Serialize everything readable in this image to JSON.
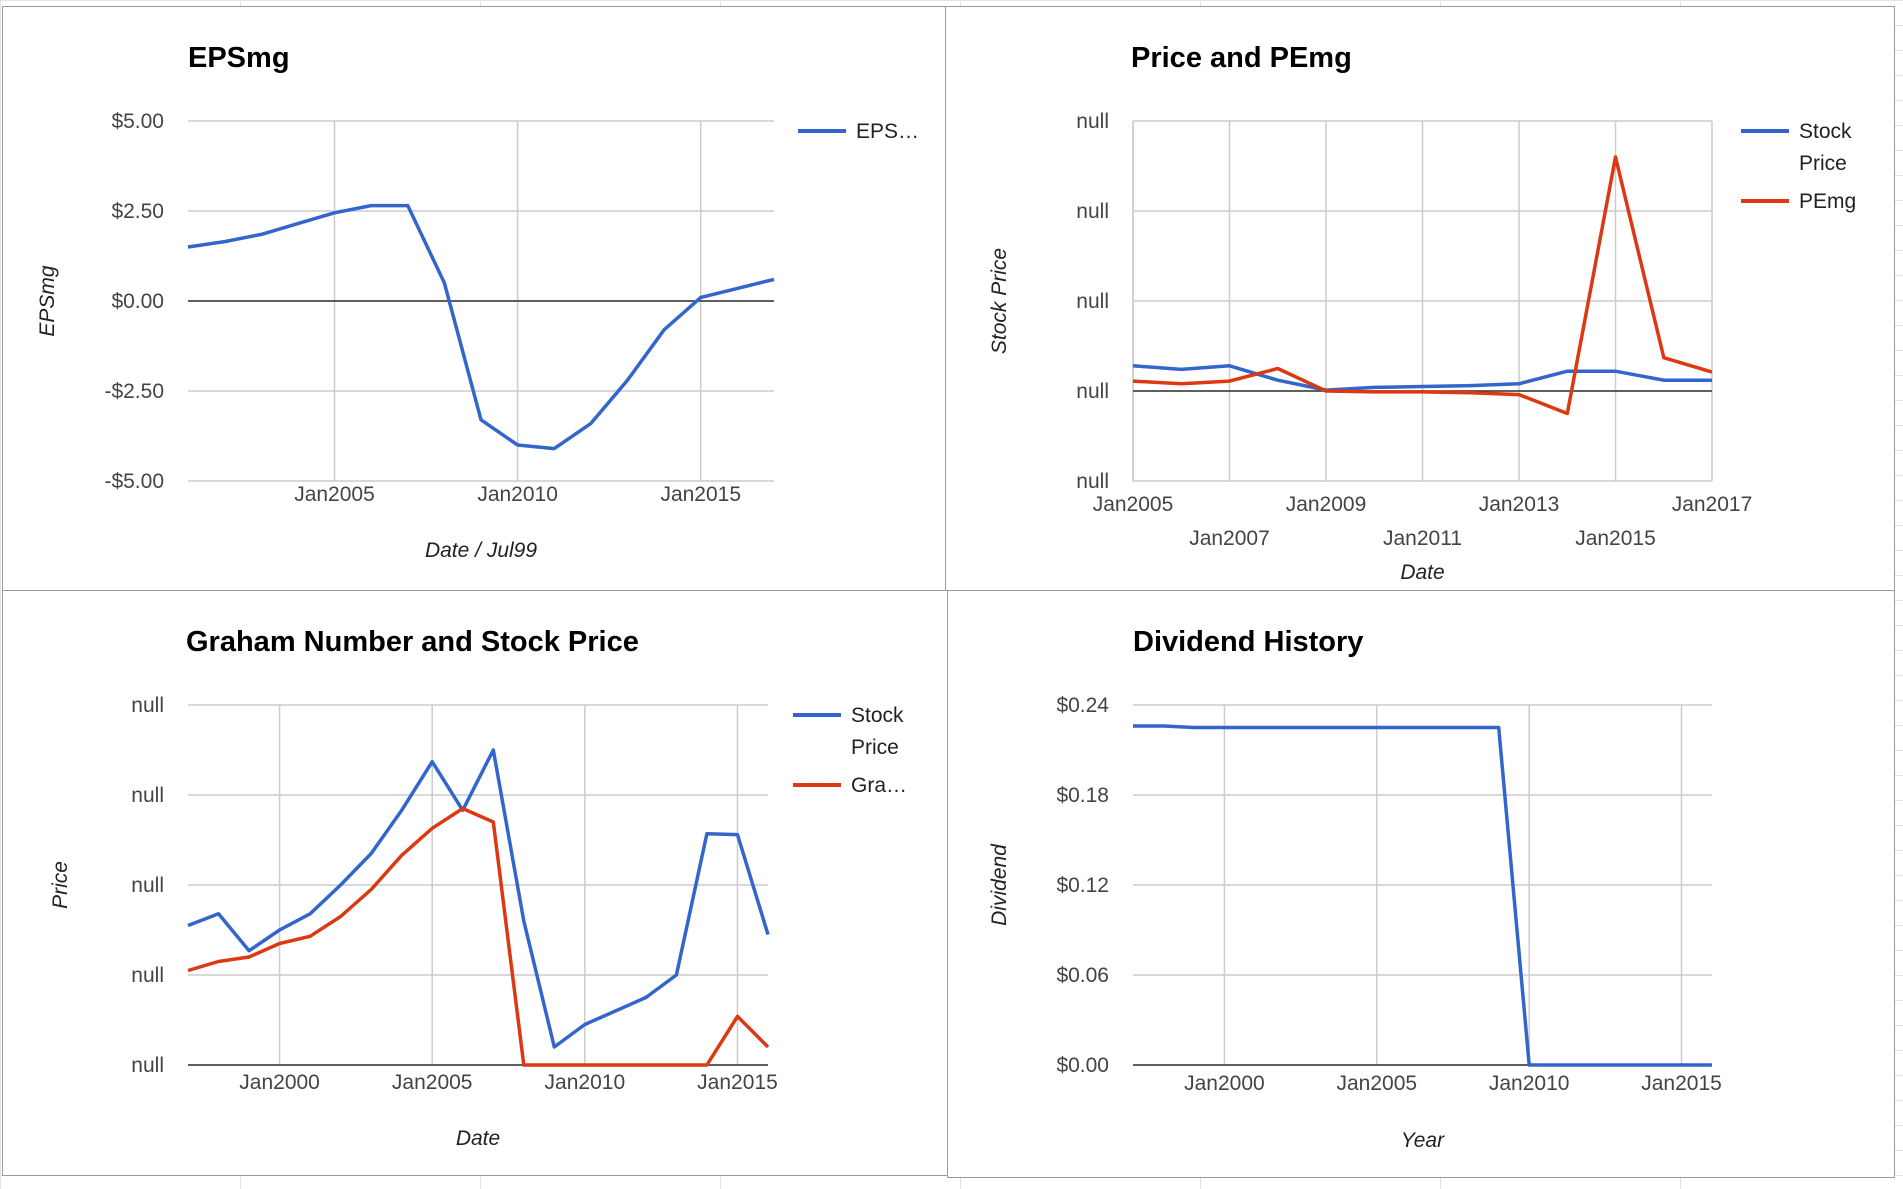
{
  "chart_data": [
    {
      "type": "line",
      "title": "EPSmg",
      "xlabel": "Date / Jul99",
      "ylabel": "EPSmg",
      "x_ticks": [
        "Jan2005",
        "Jan2010",
        "Jan2015"
      ],
      "y_ticks": [
        "$5.00",
        "$2.50",
        "$0.00",
        "-$2.50",
        "-$5.00"
      ],
      "ylim": [
        -5,
        5
      ],
      "xlim": [
        "2001-01",
        "2017-01"
      ],
      "legend": "right",
      "grid": true,
      "series": [
        {
          "name": "EPS…",
          "color": "#3366cc",
          "points": [
            {
              "x": "2001-01",
              "y": 1.5
            },
            {
              "x": "2002-01",
              "y": 1.65
            },
            {
              "x": "2003-01",
              "y": 1.85
            },
            {
              "x": "2004-01",
              "y": 2.15
            },
            {
              "x": "2005-01",
              "y": 2.45
            },
            {
              "x": "2006-01",
              "y": 2.65
            },
            {
              "x": "2007-01",
              "y": 2.65
            },
            {
              "x": "2008-01",
              "y": 0.5
            },
            {
              "x": "2009-01",
              "y": -3.3
            },
            {
              "x": "2010-01",
              "y": -4.0
            },
            {
              "x": "2011-01",
              "y": -4.1
            },
            {
              "x": "2012-01",
              "y": -3.4
            },
            {
              "x": "2013-01",
              "y": -2.2
            },
            {
              "x": "2014-01",
              "y": -0.8
            },
            {
              "x": "2015-01",
              "y": 0.1
            },
            {
              "x": "2016-01",
              "y": 0.35
            },
            {
              "x": "2017-01",
              "y": 0.6
            }
          ]
        }
      ]
    },
    {
      "type": "line",
      "title": "Price and PEmg",
      "xlabel": "Date",
      "ylabel": "Stock Price",
      "x_ticks": [
        "Jan2005",
        "Jan2007",
        "Jan2009",
        "Jan2011",
        "Jan2013",
        "Jan2015",
        "Jan2017"
      ],
      "y_ticks": [
        "null",
        "null",
        "null",
        "null",
        "null"
      ],
      "xlim": [
        "2005-01",
        "2017-01"
      ],
      "legend": "right",
      "grid": true,
      "series": [
        {
          "name": "Stock Price",
          "color": "#3366cc",
          "points": [
            {
              "x": "2005-01",
              "y": 0.28
            },
            {
              "x": "2006-01",
              "y": 0.24
            },
            {
              "x": "2007-01",
              "y": 0.28
            },
            {
              "x": "2008-01",
              "y": 0.12
            },
            {
              "x": "2009-01",
              "y": 0.01
            },
            {
              "x": "2010-01",
              "y": 0.04
            },
            {
              "x": "2011-01",
              "y": 0.05
            },
            {
              "x": "2012-01",
              "y": 0.06
            },
            {
              "x": "2013-01",
              "y": 0.08
            },
            {
              "x": "2014-01",
              "y": 0.22
            },
            {
              "x": "2015-01",
              "y": 0.22
            },
            {
              "x": "2016-01",
              "y": 0.12
            },
            {
              "x": "2017-01",
              "y": 0.12
            }
          ]
        },
        {
          "name": "PEmg",
          "color": "#dc3912",
          "points": [
            {
              "x": "2005-01",
              "y": 0.11
            },
            {
              "x": "2006-01",
              "y": 0.08
            },
            {
              "x": "2007-01",
              "y": 0.11
            },
            {
              "x": "2008-01",
              "y": 0.25
            },
            {
              "x": "2009-01",
              "y": 0.0
            },
            {
              "x": "2010-01",
              "y": -0.01
            },
            {
              "x": "2011-01",
              "y": -0.01
            },
            {
              "x": "2012-01",
              "y": -0.02
            },
            {
              "x": "2013-01",
              "y": -0.04
            },
            {
              "x": "2014-01",
              "y": -0.25
            },
            {
              "x": "2015-01",
              "y": 2.6
            },
            {
              "x": "2016-01",
              "y": 0.37
            },
            {
              "x": "2017-01",
              "y": 0.21
            }
          ]
        }
      ]
    },
    {
      "type": "line",
      "title": "Graham Number and Stock Price",
      "xlabel": "Date",
      "ylabel": "Price",
      "x_ticks": [
        "Jan2000",
        "Jan2005",
        "Jan2010",
        "Jan2015"
      ],
      "y_ticks": [
        "null",
        "null",
        "null",
        "null",
        "null"
      ],
      "xlim": [
        "1997-01",
        "2016-01"
      ],
      "legend": "right",
      "grid": true,
      "series": [
        {
          "name": "Stock Price",
          "color": "#3366cc",
          "points": [
            {
              "x": "1997-01",
              "y": 1.55
            },
            {
              "x": "1998-01",
              "y": 1.68
            },
            {
              "x": "1999-01",
              "y": 1.27
            },
            {
              "x": "2000-01",
              "y": 1.5
            },
            {
              "x": "2001-01",
              "y": 1.68
            },
            {
              "x": "2002-01",
              "y": 2.0
            },
            {
              "x": "2003-01",
              "y": 2.35
            },
            {
              "x": "2004-01",
              "y": 2.83
            },
            {
              "x": "2005-01",
              "y": 3.37
            },
            {
              "x": "2006-01",
              "y": 2.83
            },
            {
              "x": "2007-01",
              "y": 3.5
            },
            {
              "x": "2008-01",
              "y": 1.6
            },
            {
              "x": "2009-01",
              "y": 0.2
            },
            {
              "x": "2010-01",
              "y": 0.45
            },
            {
              "x": "2011-01",
              "y": 0.6
            },
            {
              "x": "2012-01",
              "y": 0.75
            },
            {
              "x": "2013-01",
              "y": 1.0
            },
            {
              "x": "2014-01",
              "y": 2.57
            },
            {
              "x": "2015-01",
              "y": 2.56
            },
            {
              "x": "2016-01",
              "y": 1.45
            }
          ]
        },
        {
          "name": "Gra…",
          "color": "#dc3912",
          "points": [
            {
              "x": "1997-01",
              "y": 1.05
            },
            {
              "x": "1998-01",
              "y": 1.15
            },
            {
              "x": "1999-01",
              "y": 1.2
            },
            {
              "x": "2000-01",
              "y": 1.35
            },
            {
              "x": "2001-01",
              "y": 1.43
            },
            {
              "x": "2002-01",
              "y": 1.65
            },
            {
              "x": "2003-01",
              "y": 1.95
            },
            {
              "x": "2004-01",
              "y": 2.33
            },
            {
              "x": "2005-01",
              "y": 2.63
            },
            {
              "x": "2006-01",
              "y": 2.85
            },
            {
              "x": "2007-01",
              "y": 2.7
            },
            {
              "x": "2008-01",
              "y": 0.0
            },
            {
              "x": "2009-01",
              "y": 0.0
            },
            {
              "x": "2010-01",
              "y": 0.0
            },
            {
              "x": "2011-01",
              "y": 0.0
            },
            {
              "x": "2012-01",
              "y": 0.0
            },
            {
              "x": "2013-01",
              "y": 0.0
            },
            {
              "x": "2014-01",
              "y": 0.0
            },
            {
              "x": "2015-01",
              "y": 0.54
            },
            {
              "x": "2016-01",
              "y": 0.2
            }
          ]
        }
      ]
    },
    {
      "type": "line",
      "title": "Dividend History",
      "xlabel": "Year",
      "ylabel": "Dividend",
      "x_ticks": [
        "Jan2000",
        "Jan2005",
        "Jan2010",
        "Jan2015"
      ],
      "y_ticks": [
        "$0.24",
        "$0.18",
        "$0.12",
        "$0.06",
        "$0.00"
      ],
      "ylim": [
        0,
        0.24
      ],
      "xlim": [
        "1997-01",
        "2016-01"
      ],
      "legend": "none",
      "grid": true,
      "series": [
        {
          "name": "",
          "color": "#3366cc",
          "points": [
            {
              "x": "1997-01",
              "y": 0.226
            },
            {
              "x": "1998-01",
              "y": 0.226
            },
            {
              "x": "1999-01",
              "y": 0.225
            },
            {
              "x": "2000-01",
              "y": 0.225
            },
            {
              "x": "2001-01",
              "y": 0.225
            },
            {
              "x": "2002-01",
              "y": 0.225
            },
            {
              "x": "2003-01",
              "y": 0.225
            },
            {
              "x": "2004-01",
              "y": 0.225
            },
            {
              "x": "2005-01",
              "y": 0.225
            },
            {
              "x": "2006-01",
              "y": 0.225
            },
            {
              "x": "2007-01",
              "y": 0.225
            },
            {
              "x": "2008-01",
              "y": 0.225
            },
            {
              "x": "2009-01",
              "y": 0.225
            },
            {
              "x": "2010-01",
              "y": 0.0
            },
            {
              "x": "2011-01",
              "y": 0.0
            },
            {
              "x": "2012-01",
              "y": 0.0
            },
            {
              "x": "2013-01",
              "y": 0.0
            },
            {
              "x": "2014-01",
              "y": 0.0
            },
            {
              "x": "2015-01",
              "y": 0.0
            },
            {
              "x": "2016-01",
              "y": 0.0
            }
          ]
        }
      ]
    }
  ]
}
